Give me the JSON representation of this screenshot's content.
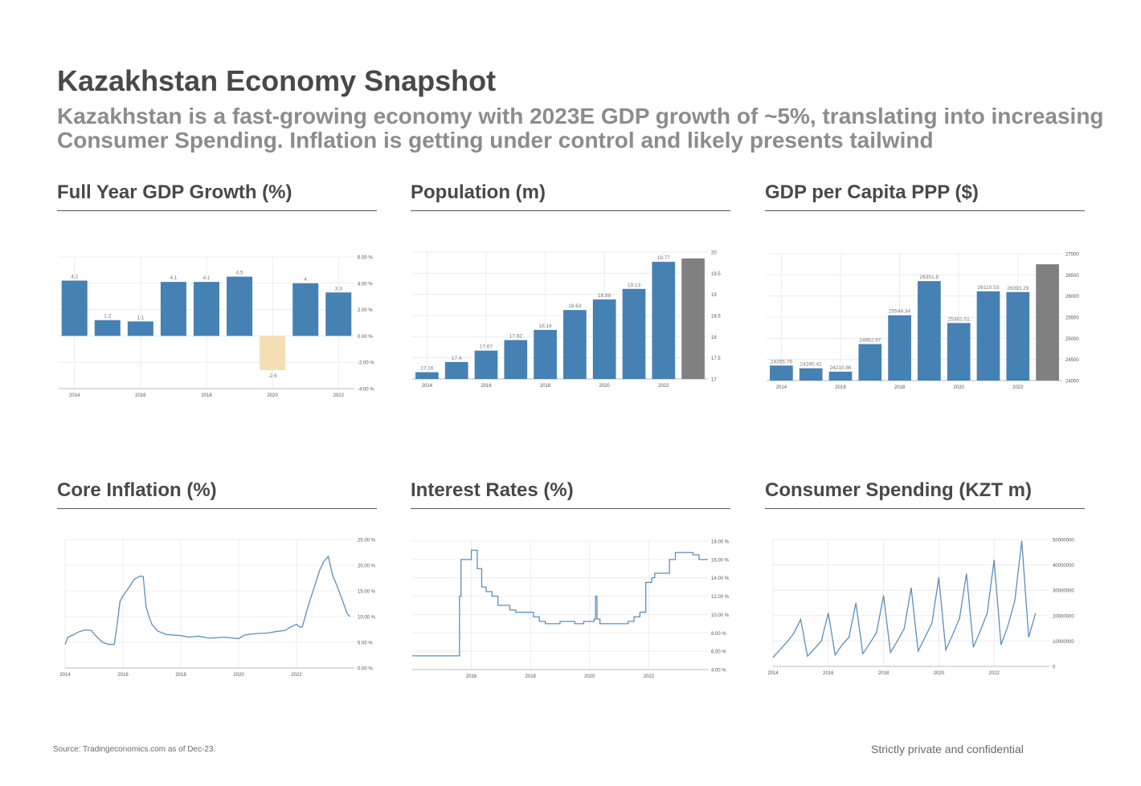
{
  "page": {
    "title": "Kazakhstan Economy Snapshot",
    "subtitle": "Kazakhstan is a fast-growing economy with 2023E GDP growth of ~5%, translating into increasing Consumer Spending. Inflation is getting under control and likely presents tailwind",
    "source": "Source: Tradingeconomics.com as of Dec-23.",
    "confidentiality": "Strictly private and confidential"
  },
  "colors": {
    "bar": "#4681b4",
    "neutral": "#808080",
    "negative": "#f5deb3",
    "line": "#5b8fbd",
    "grid": "#ececec",
    "axis": "#bbbbbb"
  },
  "panels": {
    "gdp_growth": {
      "title": "Full Year GDP Growth (%)"
    },
    "population": {
      "title": "Population (m)"
    },
    "gdp_per_capita": {
      "title": "GDP per Capita PPP ($)"
    },
    "core_inflation": {
      "title": "Core Inflation (%)"
    },
    "interest_rates": {
      "title": "Interest Rates (%)"
    },
    "consumer_spending": {
      "title": "Consumer Spending (KZT m)"
    }
  },
  "chart_data": [
    {
      "type": "bar",
      "id": "gdp_growth",
      "x": [
        2014,
        2015,
        2016,
        2017,
        2018,
        2019,
        2020,
        2021,
        2022
      ],
      "values": [
        4.2,
        1.2,
        1.1,
        4.1,
        4.1,
        4.5,
        -2.6,
        4,
        3.3
      ],
      "data_labels": [
        "4.2",
        "1.2",
        "1.1",
        "4.1",
        "4.1",
        "4.5",
        "-2.6",
        "4",
        "3.3"
      ],
      "x_ticks": [
        "2014",
        "2016",
        "2018",
        "2020",
        "2022"
      ],
      "y_ticks": [
        "6.00 %",
        "4.00 %",
        "2.00 %",
        "0.00 %",
        "-2.00 %",
        "-4.00 %"
      ],
      "ylim": [
        -4,
        6
      ],
      "y_axis_side": "right",
      "grid": true
    },
    {
      "type": "bar",
      "id": "population",
      "x": [
        2014,
        2015,
        2016,
        2017,
        2018,
        2019,
        2020,
        2021,
        2022,
        2023
      ],
      "values": [
        17.16,
        17.4,
        17.67,
        17.92,
        18.16,
        18.63,
        18.88,
        19.13,
        19.77,
        19.85
      ],
      "data_labels": [
        "17.16",
        "17.4",
        "17.67",
        "17.92",
        "18.16",
        "18.63",
        "18.88",
        "19.13",
        "19.77",
        ""
      ],
      "bar_colors": [
        "bar",
        "bar",
        "bar",
        "bar",
        "bar",
        "bar",
        "bar",
        "bar",
        "bar",
        "neutral"
      ],
      "x_ticks": [
        "2014",
        "2016",
        "2018",
        "2020",
        "2022"
      ],
      "y_ticks": [
        "20",
        "19.5",
        "19",
        "18.5",
        "18",
        "17.5",
        "17"
      ],
      "ylim": [
        17,
        20
      ],
      "y_axis_side": "right",
      "grid": true
    },
    {
      "type": "bar",
      "id": "gdp_per_capita",
      "x": [
        2014,
        2015,
        2016,
        2017,
        2018,
        2019,
        2020,
        2021,
        2022,
        2023
      ],
      "values": [
        24355.76,
        24290.42,
        24210.86,
        24862.97,
        25544.34,
        26351.8,
        25361.51,
        26110.53,
        26093.29,
        26750
      ],
      "data_labels": [
        "24355.76",
        "24290.42",
        "24210.86",
        "24862.97",
        "25544.34",
        "26351.8",
        "25361.51",
        "26110.53",
        "26093.29",
        ""
      ],
      "bar_colors": [
        "bar",
        "bar",
        "bar",
        "bar",
        "bar",
        "bar",
        "bar",
        "bar",
        "bar",
        "neutral"
      ],
      "x_ticks": [
        "2014",
        "2016",
        "2018",
        "2020",
        "2022"
      ],
      "y_ticks": [
        "27000",
        "26500",
        "26000",
        "25500",
        "25000",
        "24500",
        "24000"
      ],
      "ylim": [
        24000,
        27000
      ],
      "y_axis_side": "right",
      "grid": true
    },
    {
      "type": "line",
      "id": "core_inflation",
      "x": [
        2014.0,
        2014.1,
        2014.3,
        2014.5,
        2014.7,
        2014.9,
        2015.1,
        2015.3,
        2015.5,
        2015.7,
        2015.8,
        2015.9,
        2016.0,
        2016.2,
        2016.4,
        2016.6,
        2016.7,
        2016.8,
        2016.9,
        2017.0,
        2017.2,
        2017.5,
        2018.0,
        2018.3,
        2018.6,
        2019.0,
        2019.5,
        2020.0,
        2020.2,
        2020.6,
        2021.0,
        2021.3,
        2021.6,
        2021.8,
        2022.0,
        2022.1,
        2022.2,
        2022.4,
        2022.6,
        2022.8,
        2022.95,
        2023.1,
        2023.25,
        2023.4,
        2023.6,
        2023.75,
        2023.85
      ],
      "values": [
        4.6,
        6.0,
        6.5,
        7.1,
        7.4,
        7.3,
        6.0,
        5.0,
        4.6,
        4.6,
        8.5,
        13.0,
        14.0,
        15.6,
        17.3,
        17.9,
        17.8,
        12.0,
        10.0,
        8.5,
        7.2,
        6.5,
        6.3,
        6.0,
        6.2,
        5.8,
        6.0,
        5.7,
        6.4,
        6.7,
        6.8,
        7.1,
        7.3,
        8.0,
        8.5,
        8.0,
        8.0,
        12.0,
        15.5,
        19.0,
        20.8,
        21.7,
        18.0,
        16.0,
        13.0,
        10.6,
        10.0
      ],
      "x_ticks": [
        "2014",
        "2016",
        "2018",
        "2020",
        "2022"
      ],
      "y_ticks": [
        "25.00 %",
        "20.00 %",
        "15.00 %",
        "10.00 %",
        "5.00 %",
        "0.00 %"
      ],
      "xlim": [
        2014,
        2024
      ],
      "ylim": [
        0,
        25
      ],
      "y_axis_side": "right",
      "grid": true
    },
    {
      "type": "line",
      "id": "interest_rates",
      "step": true,
      "x": [
        2014.0,
        2015.6,
        2015.65,
        2015.8,
        2016.0,
        2016.2,
        2016.35,
        2016.5,
        2016.7,
        2016.9,
        2017.1,
        2017.3,
        2017.5,
        2017.75,
        2018.1,
        2018.3,
        2018.5,
        2018.7,
        2019.0,
        2019.3,
        2019.5,
        2019.8,
        2020.15,
        2020.2,
        2020.25,
        2020.35,
        2020.7,
        2021.0,
        2021.3,
        2021.5,
        2021.7,
        2021.9,
        2022.1,
        2022.2,
        2022.5,
        2022.7,
        2022.9,
        2023.1,
        2023.3,
        2023.5,
        2023.7
      ],
      "values": [
        5.5,
        12.0,
        16.0,
        16.0,
        17.0,
        15.0,
        13.0,
        12.5,
        12.0,
        11.0,
        11.0,
        10.5,
        10.25,
        10.25,
        9.75,
        9.25,
        9.0,
        9.0,
        9.25,
        9.25,
        9.0,
        9.25,
        9.5,
        12.0,
        9.5,
        9.0,
        9.0,
        9.0,
        9.25,
        9.75,
        10.25,
        13.5,
        14.0,
        14.5,
        14.5,
        16.0,
        16.75,
        16.75,
        16.75,
        16.5,
        16.0
      ],
      "x_ticks": [
        "2016",
        "2018",
        "2020",
        "2022"
      ],
      "y_ticks": [
        "18.00 %",
        "16.00 %",
        "14.00 %",
        "12.00 %",
        "10.00 %",
        "8.00 %",
        "6.00 %",
        "4.00 %"
      ],
      "xlim": [
        2014.0,
        2024.0
      ],
      "ylim": [
        4,
        18
      ],
      "y_axis_side": "right",
      "grid": true
    },
    {
      "type": "line",
      "id": "consumer_spending",
      "x": [
        2014.0,
        2014.25,
        2014.5,
        2014.75,
        2015.0,
        2015.25,
        2015.5,
        2015.75,
        2016.0,
        2016.25,
        2016.5,
        2016.75,
        2017.0,
        2017.25,
        2017.5,
        2017.75,
        2018.0,
        2018.25,
        2018.5,
        2018.75,
        2019.0,
        2019.25,
        2019.5,
        2019.75,
        2020.0,
        2020.25,
        2020.5,
        2020.75,
        2021.0,
        2021.25,
        2021.5,
        2021.75,
        2022.0,
        2022.25,
        2022.5,
        2022.75,
        2023.0,
        2023.25,
        2023.5
      ],
      "values": [
        3500000,
        6500000,
        9500000,
        13000000,
        18500000,
        4000000,
        7000000,
        10000000,
        21000000,
        4500000,
        8500000,
        11500000,
        25000000,
        5000000,
        9000000,
        13500000,
        28000000,
        5500000,
        10000000,
        15000000,
        31000000,
        6000000,
        11500000,
        17000000,
        35000000,
        6500000,
        12500000,
        19000000,
        36500000,
        7500000,
        14000000,
        21000000,
        42000000,
        8500000,
        16000000,
        26000000,
        49500000,
        11500000,
        21000000
      ],
      "x_ticks": [
        "2014",
        "2016",
        "2018",
        "2020",
        "2022"
      ],
      "y_ticks": [
        "50000000",
        "40000000",
        "30000000",
        "20000000",
        "10000000",
        "0"
      ],
      "xlim": [
        2014,
        2024
      ],
      "ylim": [
        0,
        50000000
      ],
      "y_axis_side": "right",
      "grid": true
    }
  ]
}
